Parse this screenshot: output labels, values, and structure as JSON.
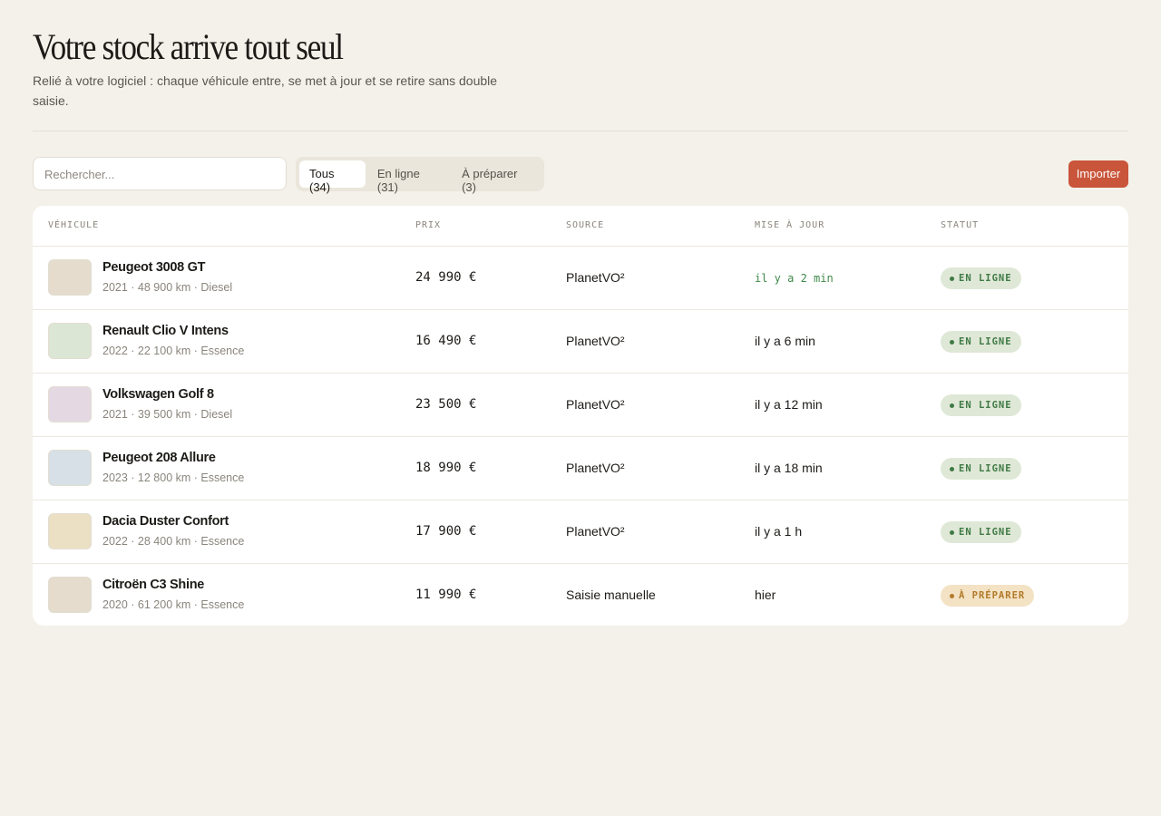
{
  "header": {
    "title": "Votre stock arrive tout seul",
    "subtitle": "Relié à votre logiciel : chaque véhicule entre, se met à jour et se retire sans double saisie."
  },
  "toolbar": {
    "search_placeholder": "Rechercher...",
    "tabs": [
      "Tous (34)",
      "En ligne (31)",
      "À préparer (3)"
    ],
    "button": "Importer"
  },
  "table": {
    "headers": [
      "VÉHICULE",
      "PRIX",
      "SOURCE",
      "MISE À JOUR",
      "STATUT"
    ],
    "rows": [
      {
        "name": "Peugeot 3008 GT",
        "meta": "2021 · 48 900 km · Diesel",
        "price": "24 990 €",
        "source": "PlanetVO²",
        "updated": "il y a 2 min",
        "status": "EN LIGNE"
      },
      {
        "name": "Renault Clio V Intens",
        "meta": "2022 · 22 100 km · Essence",
        "price": "16 490 €",
        "source": "PlanetVO²",
        "updated": "il y a 6 min",
        "status": "EN LIGNE"
      },
      {
        "name": "Volkswagen Golf 8",
        "meta": "2021 · 39 500 km · Diesel",
        "price": "23 500 €",
        "source": "PlanetVO²",
        "updated": "il y a 12 min",
        "status": "EN LIGNE"
      },
      {
        "name": "Peugeot 208 Allure",
        "meta": "2023 · 12 800 km · Essence",
        "price": "18 990 €",
        "source": "PlanetVO²",
        "updated": "il y a 18 min",
        "status": "EN LIGNE"
      },
      {
        "name": "Dacia Duster Confort",
        "meta": "2022 · 28 400 km · Essence",
        "price": "17 900 €",
        "source": "PlanetVO²",
        "updated": "il y a 1 h",
        "status": "EN LIGNE"
      },
      {
        "name": "Citroën C3 Shine",
        "meta": "2020 · 61 200 km · Essence",
        "price": "11 990 €",
        "source": "Saisie manuelle",
        "updated": "hier",
        "status": "À PRÉPARER"
      }
    ]
  }
}
